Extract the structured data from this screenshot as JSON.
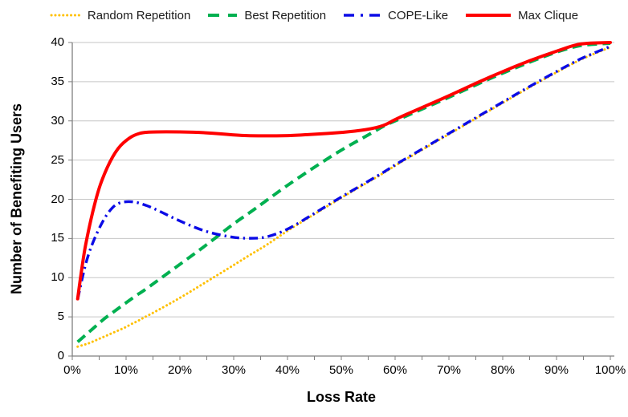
{
  "legend": {
    "position": "top",
    "items_note": "legend labels mirror chart_data.series names"
  },
  "chart_data": {
    "type": "line",
    "title": "",
    "xlabel": "Loss Rate",
    "ylabel": "Number of Benefiting Users",
    "xlim": [
      0,
      100
    ],
    "ylim": [
      0,
      40
    ],
    "x_unit": "percent",
    "grid": "horizontal",
    "legend_position": "top",
    "x_ticks": [
      0,
      10,
      20,
      30,
      40,
      50,
      60,
      70,
      80,
      90,
      100
    ],
    "x_tick_labels": [
      "0%",
      "10%",
      "20%",
      "30%",
      "40%",
      "50%",
      "60%",
      "70%",
      "80%",
      "90%",
      "100%"
    ],
    "x_minor_tick_step": 5,
    "y_ticks": [
      0,
      5,
      10,
      15,
      20,
      25,
      30,
      35,
      40
    ],
    "y_tick_labels": [
      "0",
      "5",
      "10",
      "15",
      "20",
      "25",
      "30",
      "35",
      "40"
    ],
    "x": [
      1,
      2,
      3,
      4,
      5,
      6,
      7,
      8,
      9,
      10,
      11,
      12,
      13,
      15,
      20,
      25,
      30,
      33,
      36,
      40,
      45,
      50,
      55,
      58,
      60,
      65,
      70,
      75,
      80,
      85,
      90,
      93,
      95,
      100
    ],
    "series": [
      {
        "name": "Random Repetition",
        "color": "#FFC000",
        "line_style": "dotted",
        "values": [
          1.2,
          1.4,
          1.6,
          1.9,
          2.2,
          2.5,
          2.8,
          3.1,
          3.4,
          3.7,
          4.1,
          4.4,
          4.8,
          5.5,
          7.4,
          9.5,
          11.6,
          12.9,
          14.1,
          16.0,
          18.1,
          20.2,
          22.2,
          23.4,
          24.3,
          26.3,
          28.3,
          30.3,
          32.3,
          34.3,
          36.2,
          37.3,
          38.0,
          39.4
        ]
      },
      {
        "name": "Best Repetition",
        "color": "#00B050",
        "line_style": "dashed",
        "values": [
          1.8,
          2.4,
          3.0,
          3.6,
          4.2,
          4.8,
          5.3,
          5.8,
          6.3,
          6.8,
          7.3,
          7.8,
          8.2,
          9.2,
          11.7,
          14.2,
          16.9,
          18.3,
          19.8,
          21.8,
          24.1,
          26.3,
          28.2,
          29.4,
          30.0,
          31.5,
          33.0,
          34.6,
          36.1,
          37.5,
          38.8,
          39.4,
          39.7,
          39.9
        ]
      },
      {
        "name": "COPE-Like",
        "color": "#0B0BE6",
        "line_style": "dashdot",
        "values": [
          7.2,
          10.5,
          13.0,
          14.8,
          16.3,
          17.6,
          18.6,
          19.3,
          19.6,
          19.7,
          19.7,
          19.6,
          19.4,
          18.9,
          17.2,
          15.8,
          15.1,
          15.0,
          15.1,
          16.1,
          18.2,
          20.3,
          22.3,
          23.5,
          24.4,
          26.4,
          28.4,
          30.4,
          32.4,
          34.4,
          36.3,
          37.4,
          38.1,
          39.5
        ]
      },
      {
        "name": "Max Clique",
        "color": "#FF0000",
        "line_style": "solid",
        "values": [
          7.3,
          12.5,
          16.0,
          19.0,
          21.5,
          23.3,
          24.8,
          26.0,
          26.9,
          27.5,
          28.0,
          28.3,
          28.5,
          28.6,
          28.6,
          28.5,
          28.2,
          28.1,
          28.1,
          28.1,
          28.3,
          28.5,
          28.9,
          29.4,
          30.2,
          31.7,
          33.2,
          34.8,
          36.3,
          37.7,
          38.9,
          39.6,
          39.9,
          40.0
        ]
      }
    ],
    "colors": {
      "gridline": "#C6C6C6",
      "axis": "#7F7F7F",
      "text": "#000000"
    }
  }
}
